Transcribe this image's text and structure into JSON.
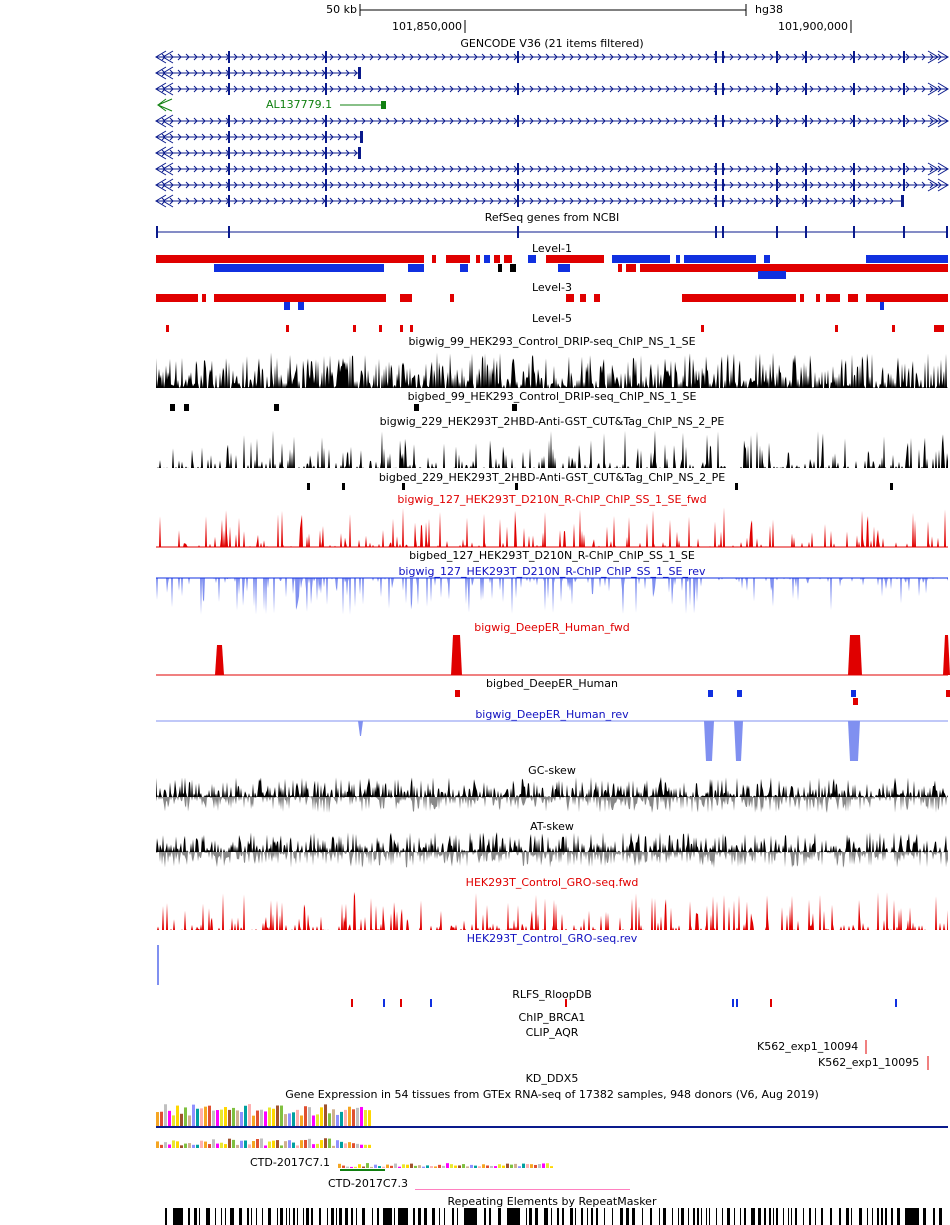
{
  "ruler": {
    "scale": "50 kb",
    "assembly": "hg38",
    "positions": [
      "101,850,000",
      "101,900,000"
    ]
  },
  "tracks": [
    {
      "label": "GENCODE V36 (21 items filtered)"
    },
    {
      "label": "RefSeq genes from NCBI"
    },
    {
      "label": "Level-1"
    },
    {
      "label": "Level-3"
    },
    {
      "label": "Level-5"
    },
    {
      "label": "bigwig_99_HEK293_Control_DRIP-seq_ChIP_NS_1_SE"
    },
    {
      "label": "bigbed_99_HEK293_Control_DRIP-seq_ChIP_NS_1_SE"
    },
    {
      "label": "bigwig_229_HEK293T_2HBD-Anti-GST_CUT&Tag_ChIP_NS_2_PE"
    },
    {
      "label": "bigbed_229_HEK293T_2HBD-Anti-GST_CUT&Tag_ChIP_NS_2_PE"
    },
    {
      "label": "bigwig_127_HEK293T_D210N_R-ChIP_ChIP_SS_1_SE_fwd"
    },
    {
      "label": "bigbed_127_HEK293T_D210N_R-ChIP_ChIP_SS_1_SE"
    },
    {
      "label": "bigwig_127_HEK293T_D210N_R-ChIP_ChIP_SS_1_SE_rev"
    },
    {
      "label": "bigwig_DeepER_Human_fwd"
    },
    {
      "label": "bigbed_DeepER_Human"
    },
    {
      "label": "bigwig_DeepER_Human_rev"
    },
    {
      "label": "GC-skew"
    },
    {
      "label": "AT-skew"
    },
    {
      "label": "HEK293T_Control_GRO-seq.fwd"
    },
    {
      "label": "HEK293T_Control_GRO-seq.rev"
    },
    {
      "label": "RLFS_RloopDB"
    },
    {
      "label": "ChIP_BRCA1"
    },
    {
      "label": "CLIP_AQR"
    },
    {
      "label": "KD_DDX5"
    },
    {
      "label": "Gene Expression in 54 tissues from GTEx RNA-seq of 17382 samples, 948 donors (V6, Aug 2019)"
    },
    {
      "label": "Repeating Elements by RepeatMasker"
    }
  ],
  "features": [
    "AL137779.1",
    "K562_exp1_10094",
    "K562_exp1_10095",
    "CTD-2017C7.1",
    "CTD-2017C7.3"
  ]
}
